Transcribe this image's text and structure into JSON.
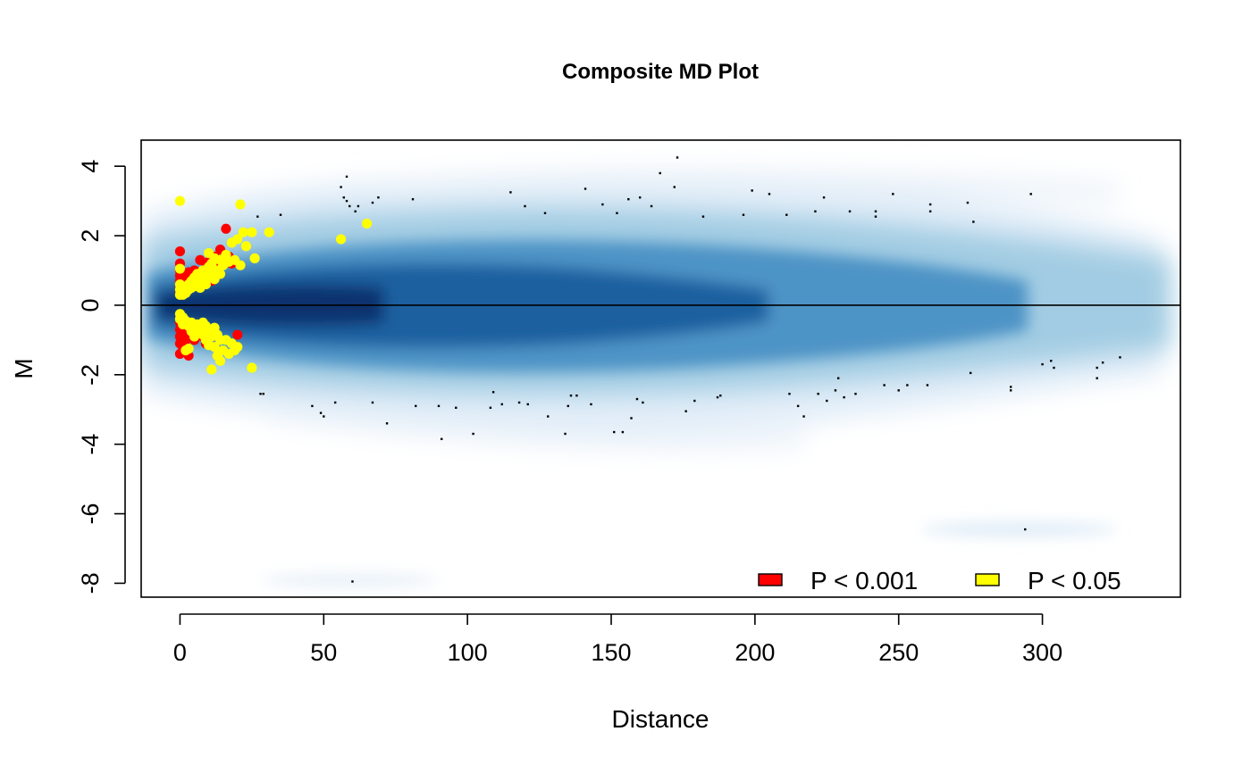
{
  "chart_data": {
    "type": "scatter",
    "title": "Composite MD Plot",
    "xlabel": "Distance",
    "ylabel": "M",
    "xlim": [
      -13.5,
      348
    ],
    "ylim": [
      -8.4,
      4.75
    ],
    "x_ticks": [
      0,
      50,
      100,
      150,
      200,
      250,
      300
    ],
    "y_ticks": [
      4,
      2,
      0,
      -2,
      -4,
      -6,
      -8
    ],
    "reference_line_y": 0,
    "grid": false,
    "legend": {
      "placement": "bottom-right",
      "entries": [
        {
          "label": "P < 0.001",
          "color": "#ff0000"
        },
        {
          "label": "P < 0.05",
          "color": "#ffff00"
        }
      ]
    },
    "colors": {
      "density_dark": "#08306b",
      "density_mid": "#4a90c4",
      "density_light": "#deebf7",
      "background_point": "#000000"
    },
    "series": [
      {
        "name": "P < 0.001",
        "color": "#ff0000",
        "points": [
          [
            0,
            1.55
          ],
          [
            0,
            1.2
          ],
          [
            0,
            1.0
          ],
          [
            0,
            0.85
          ],
          [
            0,
            0.7
          ],
          [
            0,
            0.55
          ],
          [
            0,
            0.4
          ],
          [
            1,
            0.9
          ],
          [
            1,
            0.6
          ],
          [
            2,
            0.75
          ],
          [
            2,
            0.5
          ],
          [
            3,
            0.95
          ],
          [
            4,
            0.6
          ],
          [
            5,
            1.0
          ],
          [
            6,
            0.8
          ],
          [
            7,
            1.3
          ],
          [
            8,
            0.9
          ],
          [
            9,
            1.1
          ],
          [
            10,
            1.25
          ],
          [
            11,
            0.7
          ],
          [
            12,
            1.4
          ],
          [
            13,
            1.1
          ],
          [
            14,
            1.6
          ],
          [
            15,
            1.2
          ],
          [
            16,
            2.2
          ],
          [
            17,
            1.4
          ],
          [
            18,
            1.2
          ],
          [
            0,
            -0.5
          ],
          [
            0,
            -0.7
          ],
          [
            0,
            -0.9
          ],
          [
            0,
            -1.1
          ],
          [
            0,
            -1.4
          ],
          [
            1,
            -0.8
          ],
          [
            1,
            -1.2
          ],
          [
            2,
            -1.0
          ],
          [
            2,
            -1.3
          ],
          [
            3,
            -1.45
          ],
          [
            4,
            -0.9
          ],
          [
            5,
            -1.0
          ],
          [
            6,
            -0.8
          ],
          [
            7,
            -0.7
          ],
          [
            8,
            -0.9
          ],
          [
            9,
            -1.1
          ],
          [
            10,
            -0.85
          ],
          [
            20,
            -0.85
          ]
        ]
      },
      {
        "name": "P < 0.05",
        "color": "#ffff00",
        "points": [
          [
            0,
            3.0
          ],
          [
            0,
            1.05
          ],
          [
            0,
            0.6
          ],
          [
            0,
            0.45
          ],
          [
            0,
            0.3
          ],
          [
            1,
            0.4
          ],
          [
            1,
            0.3
          ],
          [
            2,
            0.5
          ],
          [
            2,
            0.35
          ],
          [
            3,
            0.6
          ],
          [
            3,
            0.45
          ],
          [
            4,
            0.7
          ],
          [
            4,
            0.5
          ],
          [
            5,
            0.8
          ],
          [
            5,
            0.55
          ],
          [
            6,
            0.9
          ],
          [
            6,
            0.65
          ],
          [
            7,
            0.75
          ],
          [
            7,
            0.5
          ],
          [
            8,
            1.0
          ],
          [
            8,
            0.7
          ],
          [
            9,
            0.85
          ],
          [
            9,
            0.6
          ],
          [
            10,
            1.5
          ],
          [
            10,
            1.1
          ],
          [
            10,
            0.8
          ],
          [
            11,
            1.2
          ],
          [
            11,
            0.9
          ],
          [
            12,
            1.35
          ],
          [
            12,
            0.75
          ],
          [
            13,
            1.0
          ],
          [
            14,
            1.3
          ],
          [
            14,
            0.9
          ],
          [
            15,
            1.15
          ],
          [
            16,
            1.45
          ],
          [
            17,
            1.25
          ],
          [
            18,
            1.8
          ],
          [
            19,
            1.3
          ],
          [
            20,
            1.9
          ],
          [
            21,
            1.15
          ],
          [
            21,
            2.9
          ],
          [
            22,
            2.1
          ],
          [
            23,
            1.7
          ],
          [
            25,
            2.1
          ],
          [
            26,
            1.35
          ],
          [
            31,
            2.1
          ],
          [
            56,
            1.9
          ],
          [
            65,
            2.35
          ],
          [
            0,
            -0.25
          ],
          [
            0,
            -0.4
          ],
          [
            1,
            -0.35
          ],
          [
            1,
            -0.55
          ],
          [
            2,
            -0.45
          ],
          [
            2,
            -1.3
          ],
          [
            3,
            -0.6
          ],
          [
            3,
            -1.25
          ],
          [
            4,
            -0.5
          ],
          [
            4,
            -0.75
          ],
          [
            5,
            -0.65
          ],
          [
            5,
            -0.9
          ],
          [
            6,
            -0.55
          ],
          [
            6,
            -0.8
          ],
          [
            7,
            -0.7
          ],
          [
            8,
            -0.5
          ],
          [
            8,
            -0.85
          ],
          [
            9,
            -0.6
          ],
          [
            9,
            -1.0
          ],
          [
            10,
            -0.75
          ],
          [
            10,
            -1.15
          ],
          [
            11,
            -0.9
          ],
          [
            11,
            -1.85
          ],
          [
            12,
            -0.65
          ],
          [
            12,
            -1.2
          ],
          [
            13,
            -0.85
          ],
          [
            13,
            -1.45
          ],
          [
            14,
            -1.0
          ],
          [
            14,
            -1.6
          ],
          [
            15,
            -1.3
          ],
          [
            16,
            -1.0
          ],
          [
            17,
            -1.4
          ],
          [
            18,
            -1.1
          ],
          [
            19,
            -1.3
          ],
          [
            20,
            -1.2
          ],
          [
            25,
            -1.8
          ]
        ]
      },
      {
        "name": "background",
        "color": "#000000",
        "points": [
          [
            27,
            2.55
          ],
          [
            28,
            -2.55
          ],
          [
            29,
            -2.55
          ],
          [
            35,
            2.6
          ],
          [
            46,
            -2.9
          ],
          [
            49,
            -3.1
          ],
          [
            50,
            -3.2
          ],
          [
            54,
            -2.8
          ],
          [
            56,
            3.4
          ],
          [
            57,
            3.1
          ],
          [
            58,
            3.7
          ],
          [
            58,
            3.0
          ],
          [
            59,
            2.85
          ],
          [
            60,
            -7.95
          ],
          [
            61,
            2.7
          ],
          [
            62,
            2.85
          ],
          [
            67,
            -2.8
          ],
          [
            67,
            2.95
          ],
          [
            69,
            3.1
          ],
          [
            72,
            -3.4
          ],
          [
            81,
            3.05
          ],
          [
            82,
            -2.9
          ],
          [
            90,
            -2.9
          ],
          [
            91,
            -3.85
          ],
          [
            96,
            -2.95
          ],
          [
            102,
            -3.7
          ],
          [
            108,
            -2.95
          ],
          [
            109,
            -2.5
          ],
          [
            112,
            -2.85
          ],
          [
            115,
            3.25
          ],
          [
            118,
            -2.8
          ],
          [
            120,
            2.85
          ],
          [
            121,
            -2.85
          ],
          [
            127,
            2.65
          ],
          [
            128,
            -3.2
          ],
          [
            134,
            -3.7
          ],
          [
            135,
            -2.9
          ],
          [
            136,
            -2.6
          ],
          [
            138,
            -2.6
          ],
          [
            141,
            3.35
          ],
          [
            143,
            -2.85
          ],
          [
            147,
            2.9
          ],
          [
            151,
            -3.65
          ],
          [
            152,
            2.65
          ],
          [
            154,
            -3.65
          ],
          [
            156,
            3.05
          ],
          [
            157,
            -3.25
          ],
          [
            159,
            -2.7
          ],
          [
            160,
            3.1
          ],
          [
            161,
            -2.8
          ],
          [
            164,
            2.85
          ],
          [
            167,
            3.8
          ],
          [
            172,
            3.4
          ],
          [
            173,
            4.25
          ],
          [
            176,
            -3.05
          ],
          [
            179,
            -2.75
          ],
          [
            182,
            2.55
          ],
          [
            187,
            -2.65
          ],
          [
            188,
            -2.6
          ],
          [
            196,
            2.6
          ],
          [
            199,
            3.3
          ],
          [
            205,
            3.2
          ],
          [
            211,
            2.6
          ],
          [
            212,
            -2.55
          ],
          [
            215,
            -2.9
          ],
          [
            217,
            -3.2
          ],
          [
            221,
            2.7
          ],
          [
            222,
            -2.55
          ],
          [
            224,
            3.1
          ],
          [
            225,
            -2.75
          ],
          [
            228,
            -2.45
          ],
          [
            229,
            -2.1
          ],
          [
            231,
            -2.65
          ],
          [
            233,
            2.7
          ],
          [
            235,
            -2.55
          ],
          [
            242,
            2.55
          ],
          [
            242,
            2.7
          ],
          [
            245,
            -2.3
          ],
          [
            248,
            3.2
          ],
          [
            250,
            -2.45
          ],
          [
            253,
            -2.3
          ],
          [
            260,
            -2.3
          ],
          [
            261,
            2.9
          ],
          [
            261,
            2.7
          ],
          [
            274,
            2.95
          ],
          [
            275,
            -1.95
          ],
          [
            276,
            2.4
          ],
          [
            289,
            -2.35
          ],
          [
            289,
            -2.45
          ],
          [
            294,
            -6.45
          ],
          [
            296,
            3.2
          ],
          [
            300,
            -1.7
          ],
          [
            303,
            -1.6
          ],
          [
            304,
            -1.8
          ],
          [
            319,
            -1.8
          ],
          [
            319,
            -2.1
          ],
          [
            321,
            -1.65
          ],
          [
            327,
            -1.5
          ]
        ]
      }
    ]
  }
}
